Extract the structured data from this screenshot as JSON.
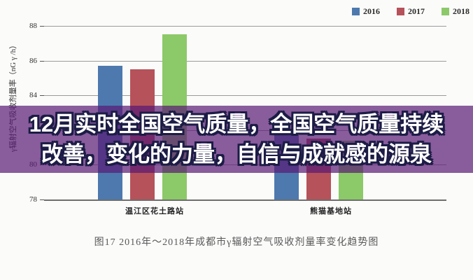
{
  "banner": {
    "line1": "12月实时全国空气质量，全国空气质量持续",
    "line2": "改善，变化的力量，自信与成就感的源泉",
    "background": "rgba(88,24,116,0.70)",
    "text_color": "#ffffff",
    "outline_color": "#1c1c46"
  },
  "chart_data": {
    "type": "bar",
    "title": "",
    "categories": [
      "温江区花土路站",
      "熊猫基地站"
    ],
    "series": [
      {
        "name": "2016",
        "color": "#4d79ae",
        "values": [
          85.7,
          81.7
        ]
      },
      {
        "name": "2017",
        "color": "#b6525a",
        "values": [
          85.5,
          81.5
        ]
      },
      {
        "name": "2018",
        "color": "#8cc968",
        "values": [
          87.5,
          81.4
        ]
      }
    ],
    "xlabel": "",
    "ylabel": "γ辐射空气吸收剂量率（nG γ /h）",
    "ylim": [
      78,
      88
    ],
    "yticks": [
      78,
      80,
      82,
      84,
      86,
      88
    ],
    "grid": true,
    "legend_position": "top-right"
  },
  "caption": "图17  2016年～2018年成都市γ辐射空气吸收剂量率变化趋势图",
  "colors": {
    "page_background": "#fbfbfa",
    "gridline": "#9b9b9b",
    "axis": "#6e6e6e",
    "caption_text": "#595959"
  }
}
